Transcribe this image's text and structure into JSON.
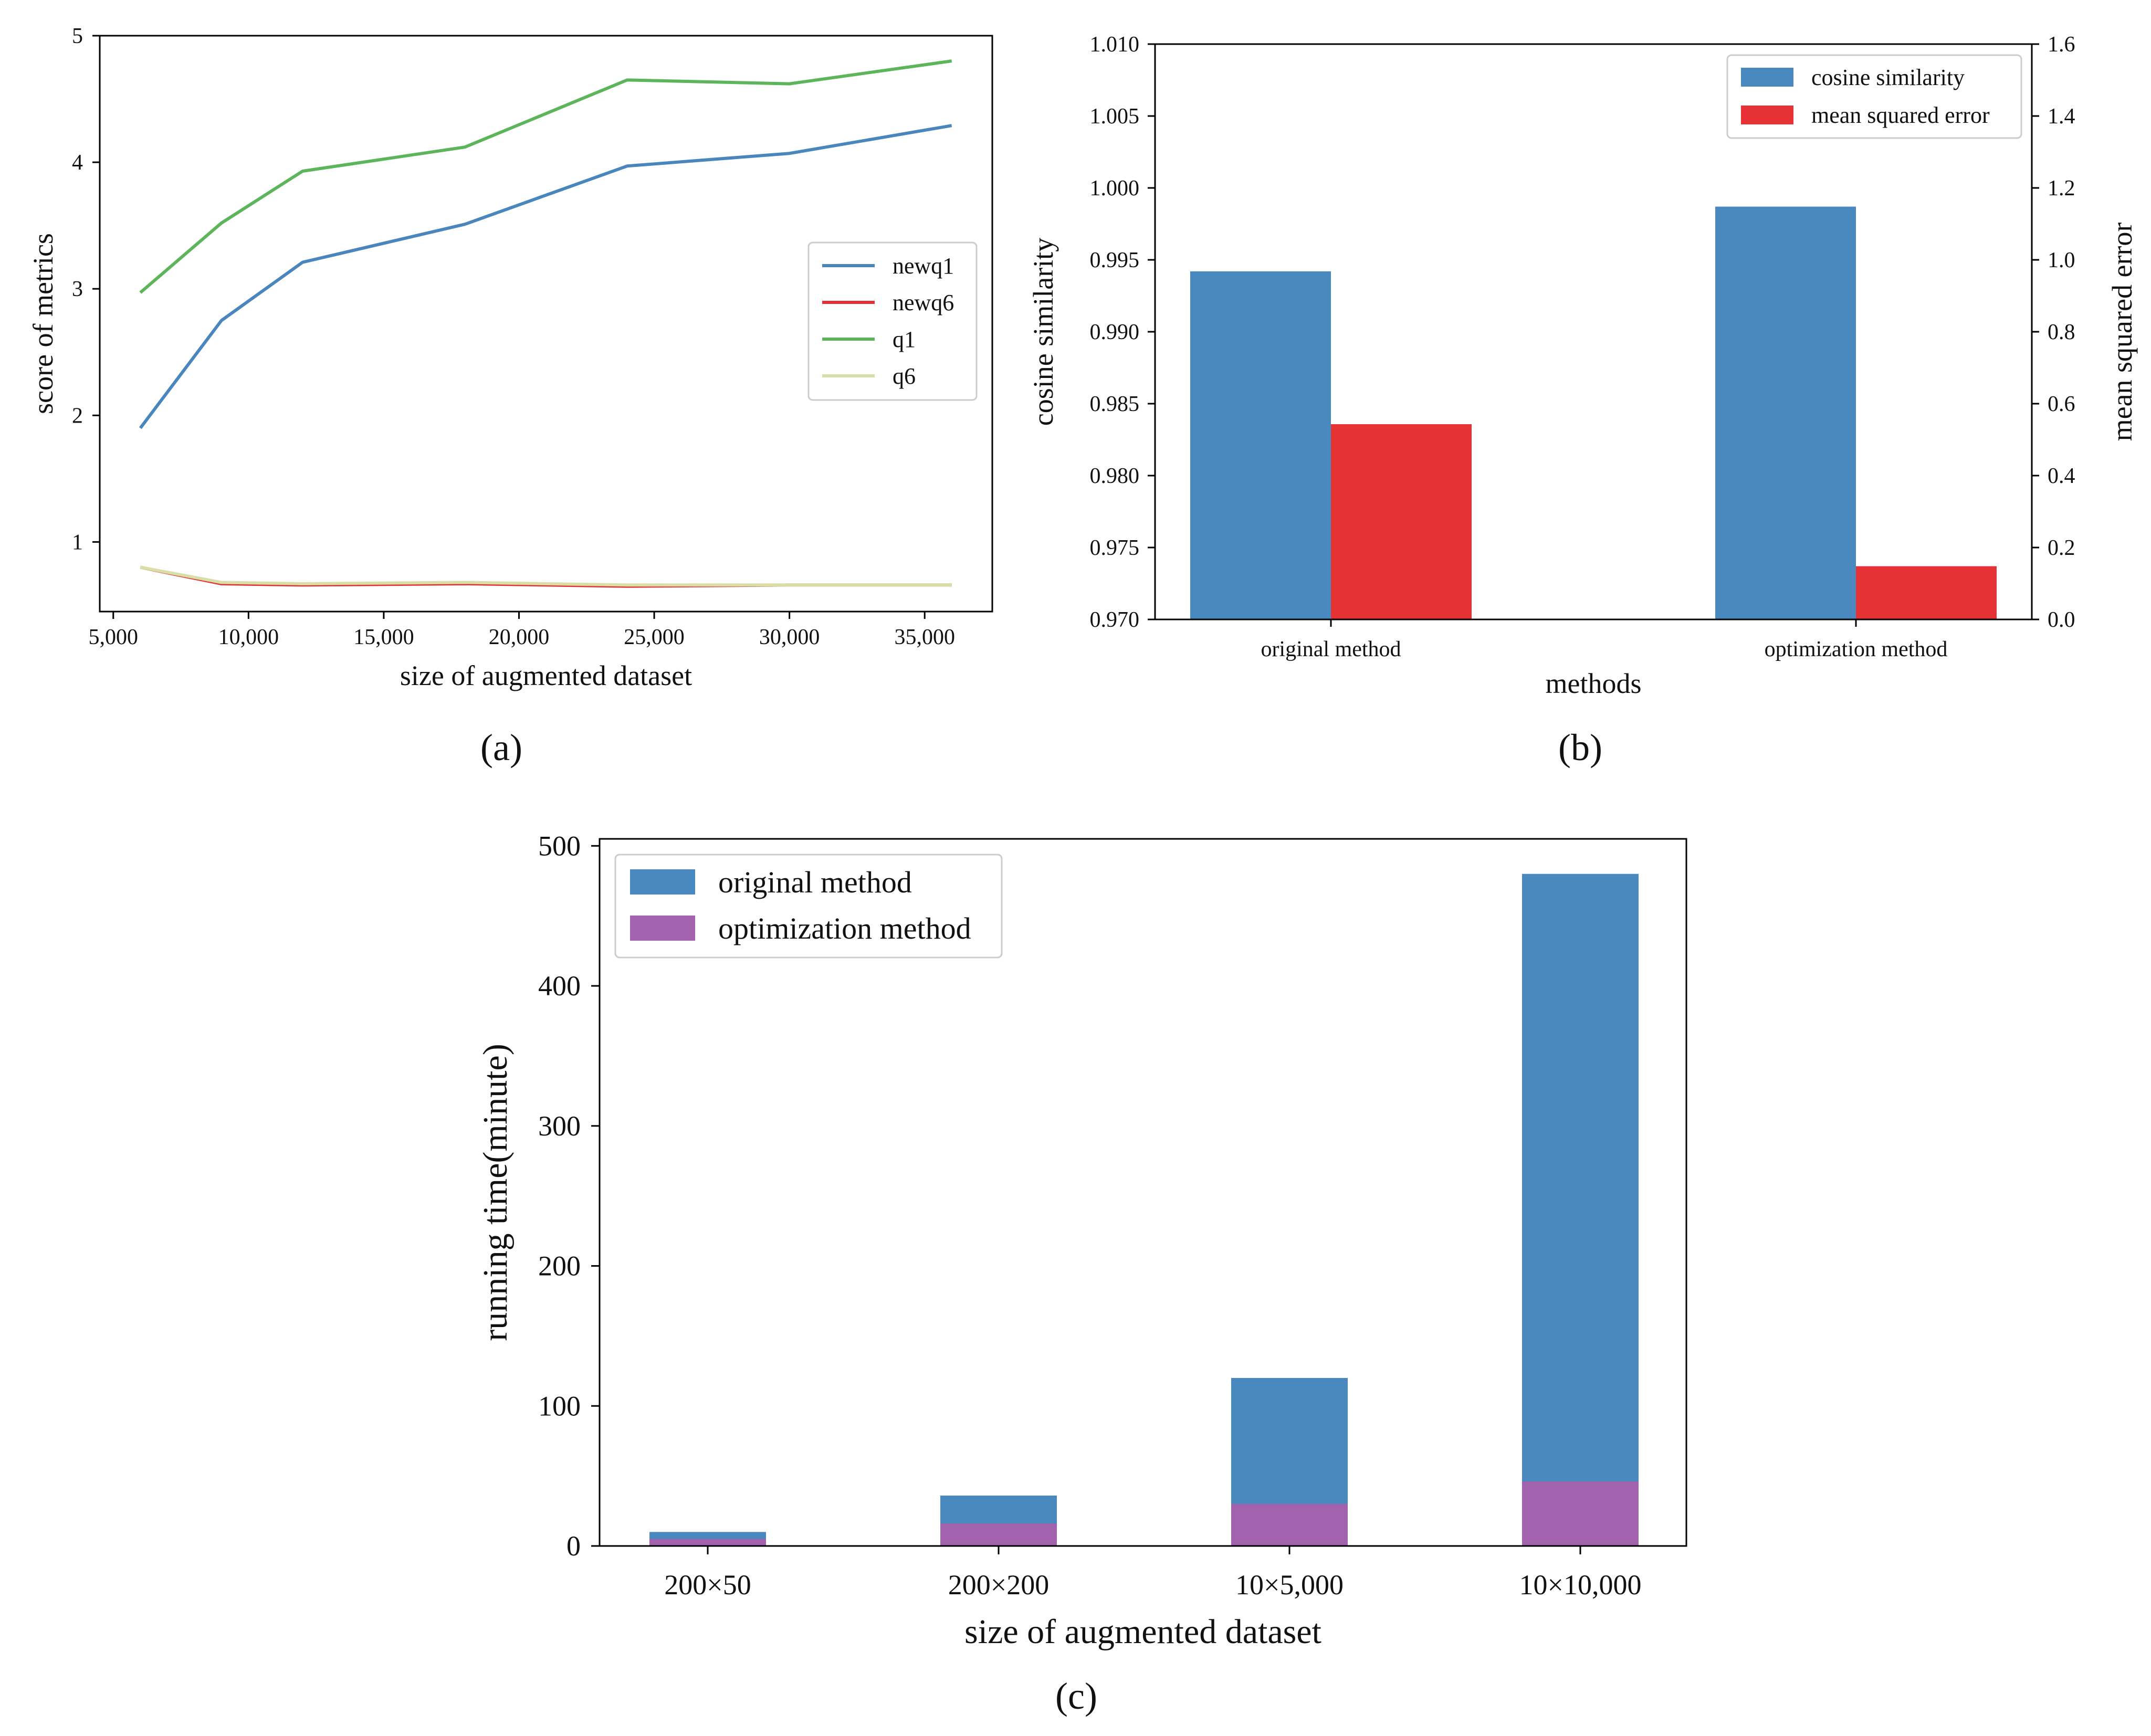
{
  "chart_data": [
    {
      "id": "a",
      "type": "line",
      "caption": "a",
      "xlabel": "size of augmented dataset",
      "ylabel": "score of metrics",
      "xlim": [
        4500,
        37500
      ],
      "ylim": [
        0.45,
        5.0
      ],
      "x_ticks": [
        5000,
        10000,
        15000,
        20000,
        25000,
        30000,
        35000
      ],
      "x_tick_labels": [
        "5,000",
        "10,000",
        "15,000",
        "20,000",
        "25,000",
        "30,000",
        "35,000"
      ],
      "y_ticks": [
        1,
        2,
        3,
        4,
        5
      ],
      "y_tick_labels": [
        "1",
        "2",
        "3",
        "4",
        "5"
      ],
      "x": [
        6000,
        9000,
        12000,
        18000,
        24000,
        30000,
        36000
      ],
      "series": [
        {
          "name": "newq1",
          "color": "#4a86be",
          "values": [
            1.9,
            2.75,
            3.21,
            3.51,
            3.97,
            4.07,
            4.29
          ]
        },
        {
          "name": "newq6",
          "color": "#e32f33",
          "values": [
            0.8,
            0.67,
            0.66,
            0.67,
            0.65,
            0.66,
            0.66
          ]
        },
        {
          "name": "q1",
          "color": "#5cb55a",
          "values": [
            2.97,
            3.52,
            3.93,
            4.12,
            4.65,
            4.62,
            4.8
          ]
        },
        {
          "name": "q6",
          "color": "#d8dea6",
          "values": [
            0.8,
            0.68,
            0.67,
            0.68,
            0.66,
            0.66,
            0.66
          ]
        }
      ],
      "legend": "center-right"
    },
    {
      "id": "b",
      "type": "bar",
      "caption": "b",
      "xlabel": "methods",
      "ylabel": "cosine similarity",
      "ylabel_right": "mean squared error",
      "categories": [
        "original method",
        "optimization method"
      ],
      "ylim": [
        0.97,
        1.01
      ],
      "ylim_right": [
        0.0,
        1.6
      ],
      "y_ticks": [
        0.97,
        0.975,
        0.98,
        0.985,
        0.99,
        0.995,
        1.0,
        1.005,
        1.01
      ],
      "y_tick_labels": [
        "0.970",
        "0.975",
        "0.980",
        "0.985",
        "0.990",
        "0.995",
        "1.000",
        "1.005",
        "1.010"
      ],
      "y_ticks_right": [
        0.0,
        0.2,
        0.4,
        0.6,
        0.8,
        1.0,
        1.2,
        1.4,
        1.6
      ],
      "y_tick_labels_right": [
        "0.0",
        "0.2",
        "0.4",
        "0.6",
        "0.8",
        "1.0",
        "1.2",
        "1.4",
        "1.6"
      ],
      "series": [
        {
          "name": "cosine similarity",
          "axis": "left",
          "color": "#4a89c0",
          "values": [
            0.9942,
            0.9987
          ]
        },
        {
          "name": "mean squared error",
          "axis": "right",
          "color": "#e63234",
          "values": [
            0.543,
            0.148
          ]
        }
      ],
      "legend": "top-right"
    },
    {
      "id": "c",
      "type": "bar",
      "caption": "c",
      "xlabel": "size of augmented dataset",
      "ylabel": "running time(minute)",
      "categories": [
        "200×50",
        "200×200",
        "10×5,000",
        "10×10,000"
      ],
      "ylim": [
        0,
        505
      ],
      "y_ticks": [
        0,
        100,
        200,
        300,
        400,
        500
      ],
      "y_tick_labels": [
        "0",
        "100",
        "200",
        "300",
        "400",
        "500"
      ],
      "series": [
        {
          "name": "original method",
          "color": "#4a89c0",
          "values": [
            10,
            36,
            120,
            480
          ]
        },
        {
          "name": "optimization method",
          "color": "#a262ae",
          "values": [
            5,
            16,
            30,
            46
          ]
        }
      ],
      "legend": "top-left"
    }
  ]
}
